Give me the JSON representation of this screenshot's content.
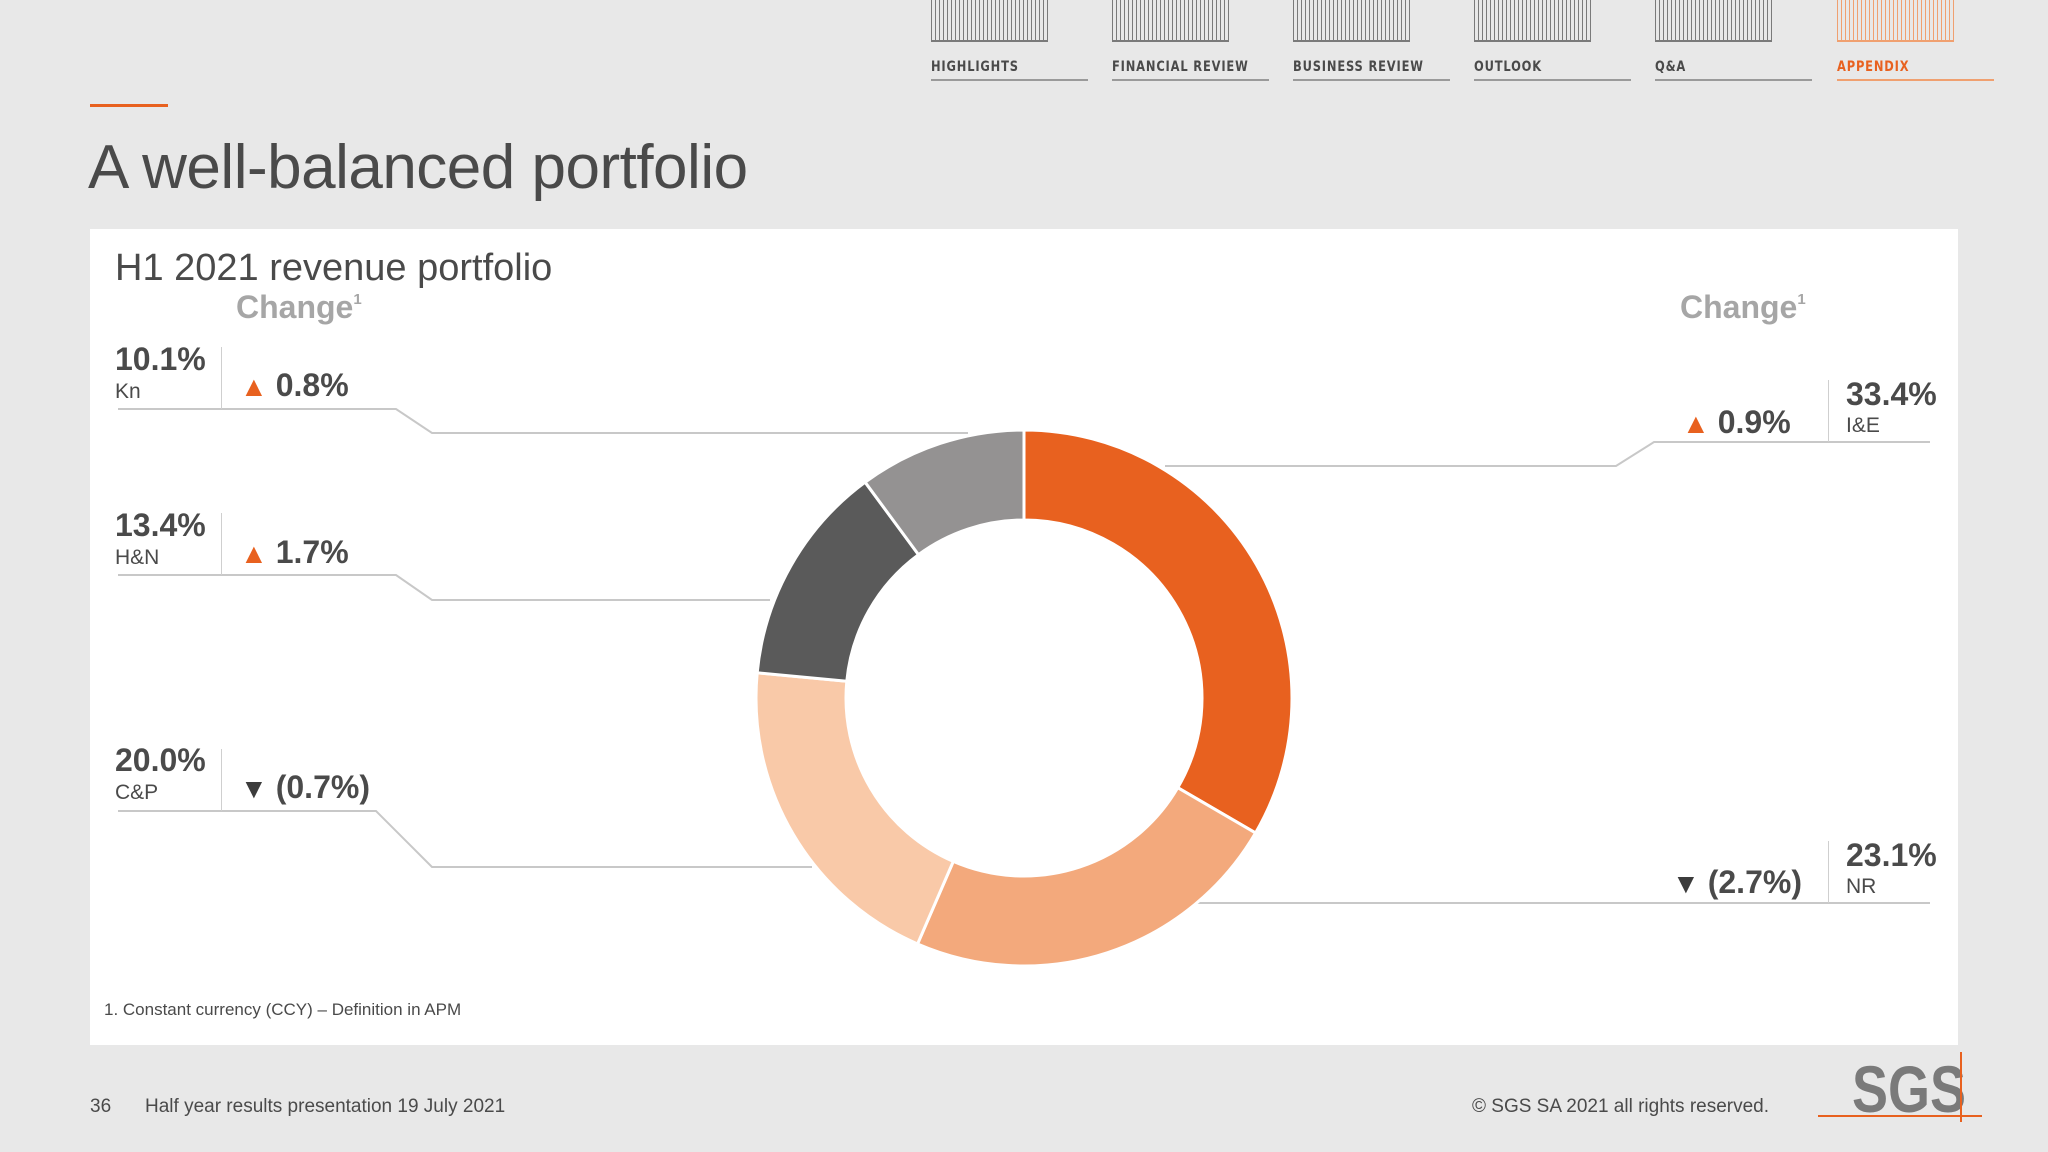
{
  "nav": {
    "items": [
      {
        "label": "HIGHLIGHTS",
        "active": false
      },
      {
        "label": "FINANCIAL REVIEW",
        "active": false
      },
      {
        "label": "BUSINESS REVIEW",
        "active": false
      },
      {
        "label": "OUTLOOK",
        "active": false
      },
      {
        "label": "Q&A",
        "active": false
      },
      {
        "label": "APPENDIX",
        "active": true
      }
    ]
  },
  "page": {
    "title": "A well-balanced portfolio"
  },
  "card": {
    "title": "H1 2021 revenue portfolio",
    "change_header": "Change",
    "change_footnote_marker": "1",
    "footnote": "1. Constant currency (CCY) – Definition in APM"
  },
  "chart_data": {
    "type": "pie",
    "title": "H1 2021 revenue portfolio",
    "donut": true,
    "series": [
      {
        "name": "I&E",
        "share_label": "33.4%",
        "value": 33.4,
        "change_label": "0.9%",
        "change": 0.9,
        "direction": "up",
        "color": "#e8611f"
      },
      {
        "name": "NR",
        "share_label": "23.1%",
        "value": 23.1,
        "change_label": "(2.7%)",
        "change": -2.7,
        "direction": "down",
        "color": "#f3a97c"
      },
      {
        "name": "C&P",
        "share_label": "20.0%",
        "value": 20.0,
        "change_label": "(0.7%)",
        "change": -0.7,
        "direction": "down",
        "color": "#f9c9a8"
      },
      {
        "name": "H&N",
        "share_label": "13.4%",
        "value": 13.4,
        "change_label": "1.7%",
        "change": 1.7,
        "direction": "up",
        "color": "#5a5a5a"
      },
      {
        "name": "Kn",
        "share_label": "10.1%",
        "value": 10.1,
        "change_label": "0.8%",
        "change": 0.8,
        "direction": "up",
        "color": "#949292"
      }
    ],
    "start_angle_deg": 0,
    "direction": "clockwise"
  },
  "icons": {
    "up": "▲",
    "down": "▼"
  },
  "footer": {
    "page_number": "36",
    "presentation": "Half year results presentation 19 July 2021",
    "copyright": "© SGS SA 2021 all rights reserved.",
    "logo_text": "SGS"
  },
  "colors": {
    "accent": "#e8611f",
    "background": "#e8e8e8",
    "card": "#ffffff",
    "text": "#4a4a4a"
  }
}
